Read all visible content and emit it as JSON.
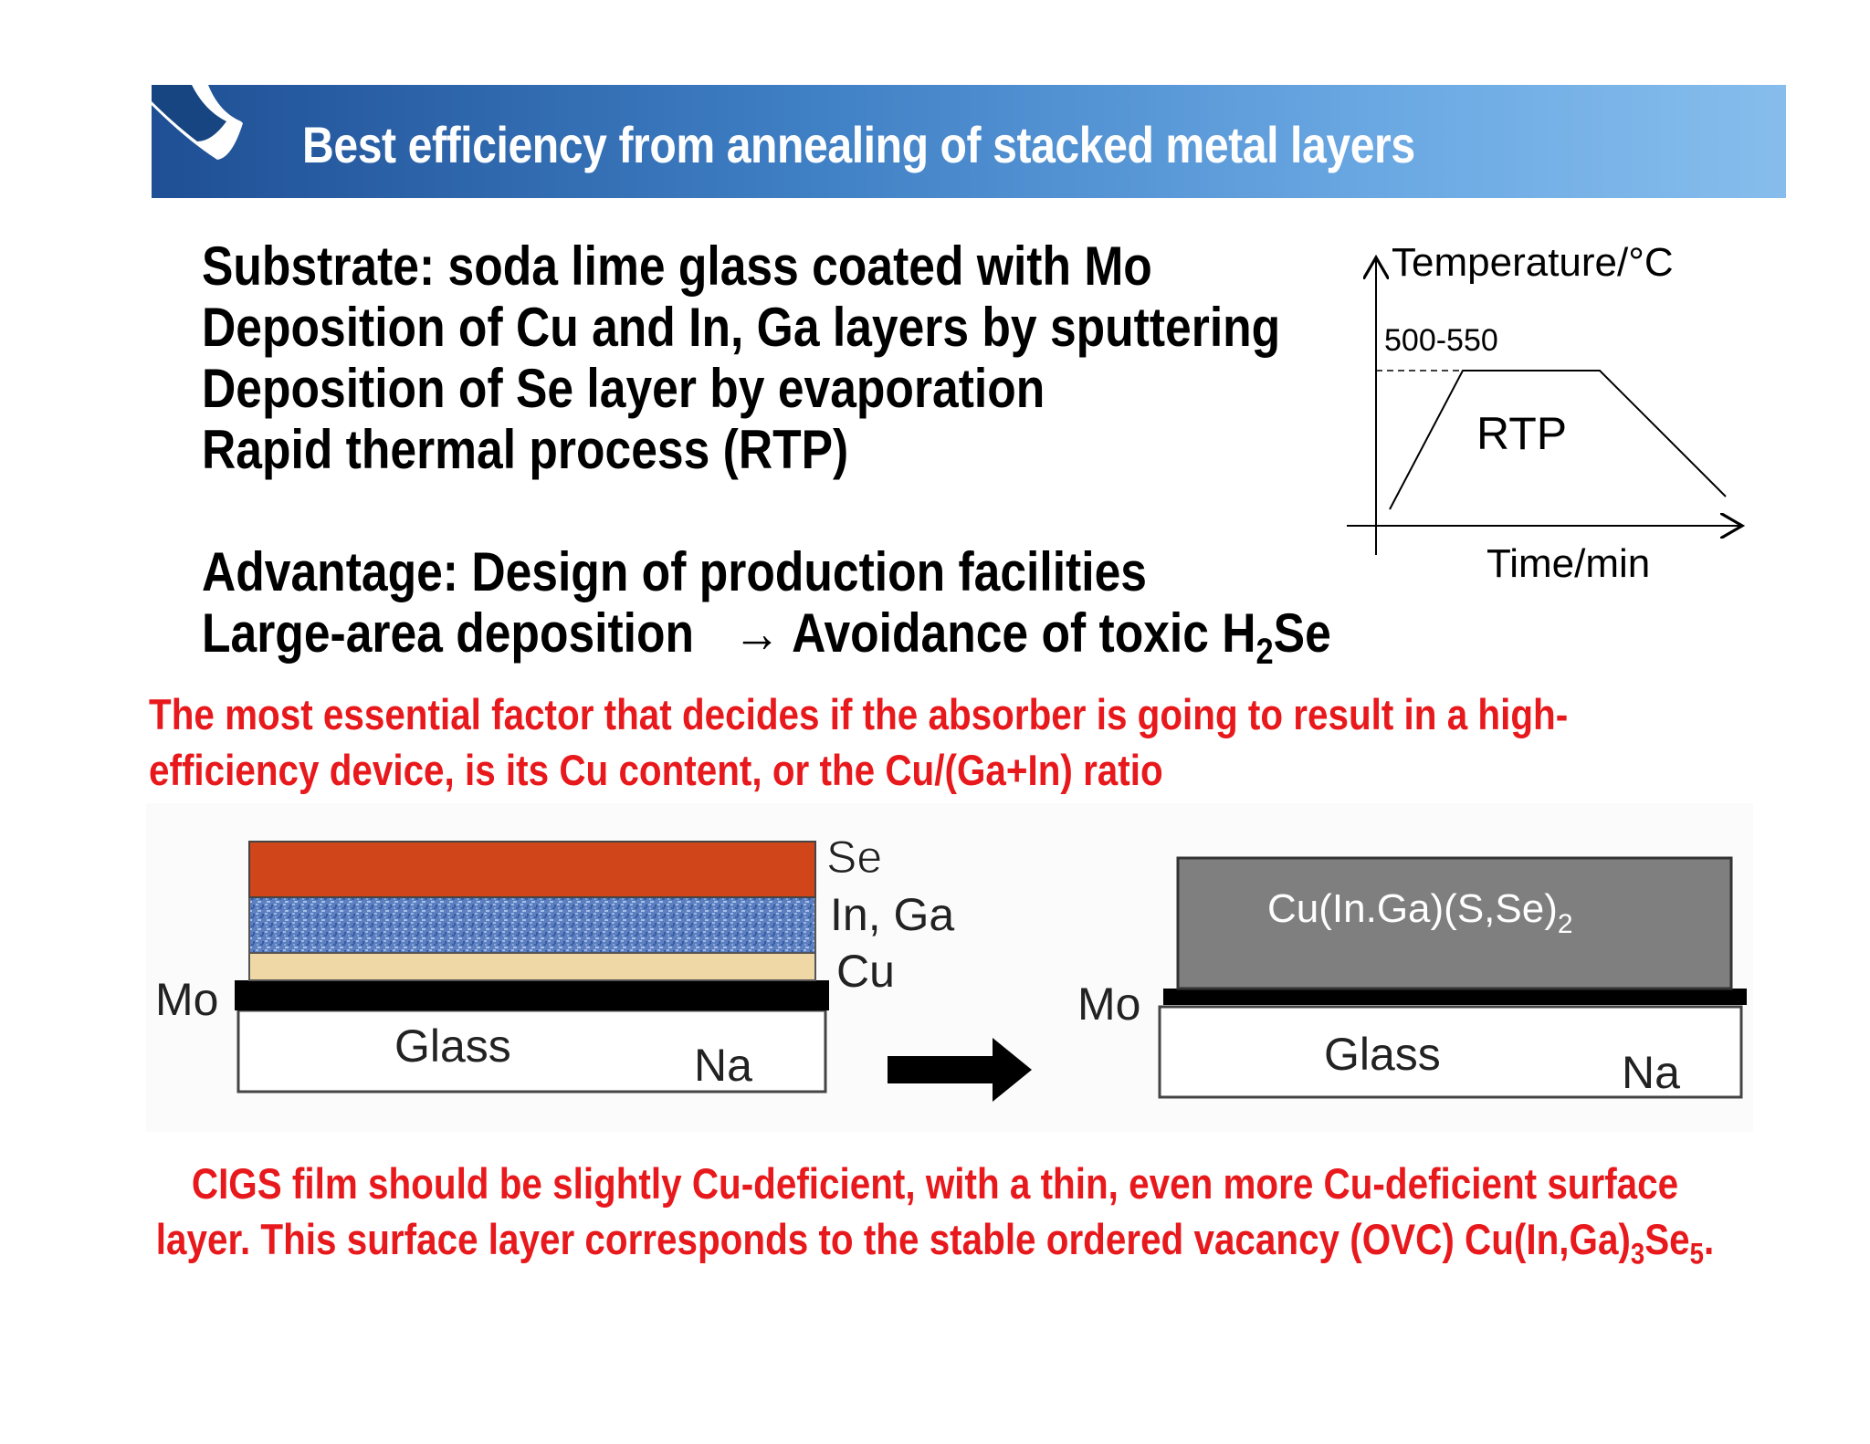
{
  "slide": {
    "title": "Best efficiency from annealing of stacked metal layers",
    "bullets": [
      "Substrate: soda lime glass coated with Mo",
      "Deposition of Cu and In, Ga layers by sputtering",
      "Deposition of Se layer by evaporation",
      "Rapid thermal process (RTP)"
    ],
    "advantage": {
      "line1": "Advantage: Design of production facilities",
      "line2_pre": "Large-area deposition",
      "line2_arrow": "→",
      "line2_post_prefix": "Avoidance of toxic H",
      "line2_sub": "2",
      "line2_post_suffix": "Se"
    },
    "red_note": {
      "line1": "The most essential factor that decides if the absorber is going to result in a high-",
      "line2": "efficiency device, is its Cu content, or the Cu/(Ga+In) ratio"
    },
    "bottom_note": {
      "line1": "CIGS  film should be slightly Cu-deficient, with a thin, even more Cu-deficient surface",
      "line2_prefix": "layer. This surface layer corresponds to the stable ordered vacancy (OVC) Cu(In,Ga)",
      "line2_sub1": "3",
      "line2_mid": "Se",
      "line2_sub2": "5",
      "line2_suffix": "."
    }
  },
  "rtp_profile": {
    "y_label": "Temperature/°C",
    "x_label": "Time/min",
    "plateau_label": "500-550",
    "process_label": "RTP"
  },
  "stack_before": {
    "layers": [
      "Se",
      "In, Ga",
      "Cu"
    ],
    "mo_label": "Mo",
    "glass_label": "Glass",
    "na_label": "Na"
  },
  "stack_after": {
    "absorber_prefix": "Cu(In.Ga)(S,Se)",
    "absorber_sub": "2",
    "mo_label": "Mo",
    "glass_label": "Glass",
    "na_label": "Na"
  },
  "colors": {
    "se_layer": "#d0461a",
    "inga_layer": "#5b7fc0",
    "cu_layer": "#efd8a6",
    "mo_layer": "#000000",
    "absorber": "#7f7f7f",
    "accent_red": "#e8191c"
  }
}
